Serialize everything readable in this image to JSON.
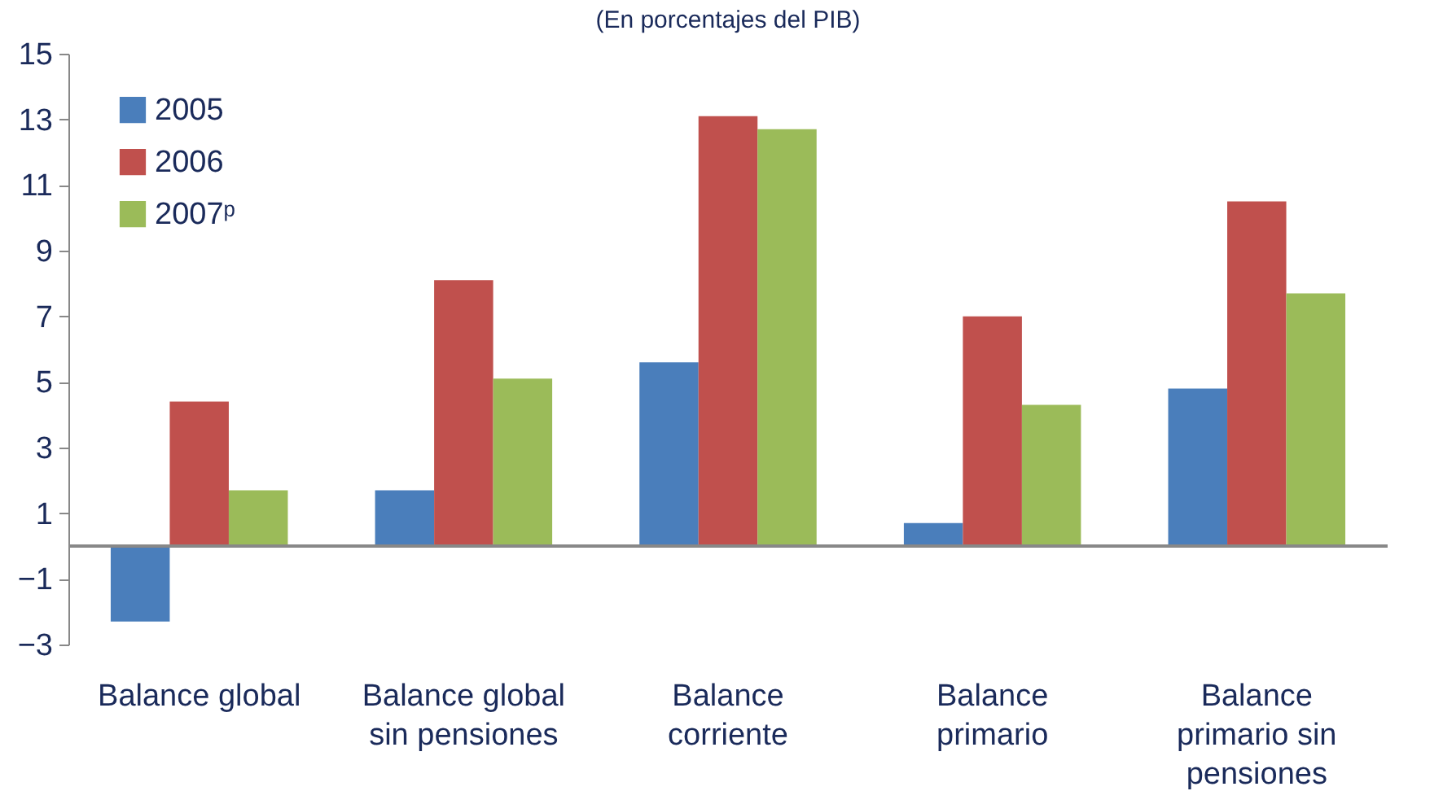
{
  "chart_data": {
    "type": "bar",
    "subtitle": "(En porcentajes del PIB)",
    "categories": [
      "Balance global",
      "Balance global sin pensiones",
      "Balance corriente",
      "Balance primario",
      "Balance primario sin pensiones"
    ],
    "series": [
      {
        "name": "2005",
        "color": "#4a7ebb",
        "values": [
          -2.3,
          1.7,
          5.6,
          0.7,
          4.8
        ]
      },
      {
        "name": "2006",
        "color": "#c0504d",
        "values": [
          4.4,
          8.1,
          13.1,
          7.0,
          10.5
        ]
      },
      {
        "name": "2007ᵖ",
        "color": "#9bbb59",
        "values": [
          1.7,
          5.1,
          12.7,
          4.3,
          7.7
        ]
      }
    ],
    "ylim": [
      -3,
      15
    ],
    "yticks": [
      -3,
      -1,
      1,
      3,
      5,
      7,
      9,
      11,
      13,
      15
    ],
    "legend": "top left"
  }
}
